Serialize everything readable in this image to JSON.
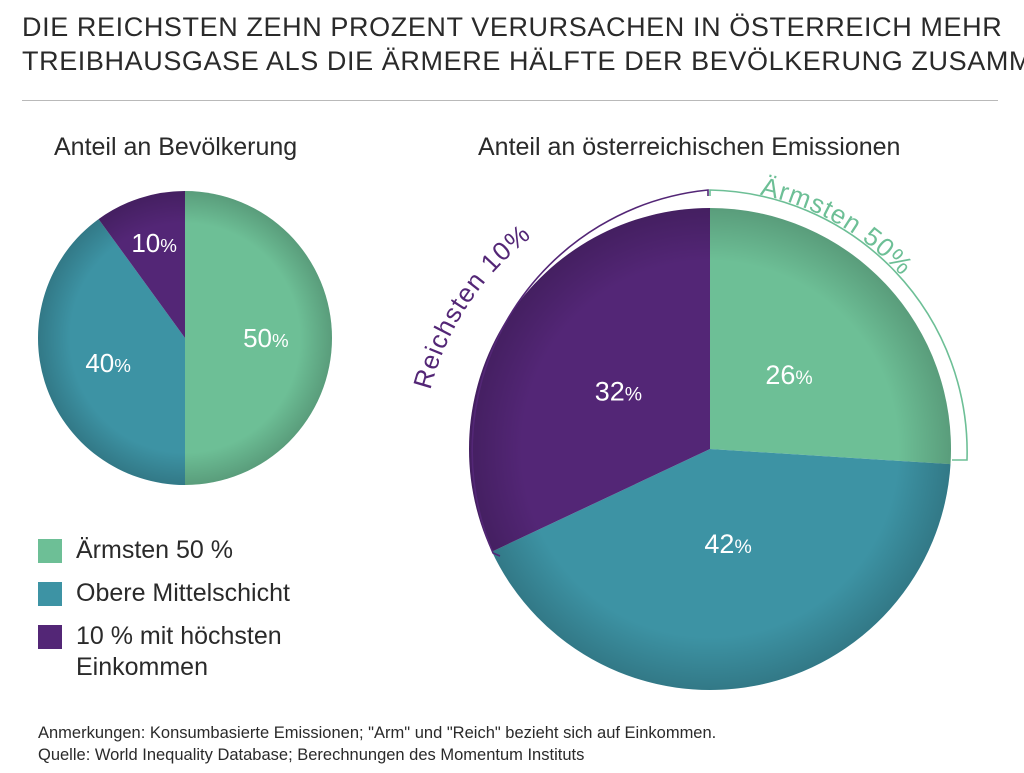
{
  "title": {
    "line1": "Die reichsten zehn Prozent verursachen in Österreich mehr",
    "line2": "Treibhausgase als die ärmere Hälfte der Bevölkerung zusammen"
  },
  "chart_data": [
    {
      "type": "pie",
      "title": "Anteil an Bevölkerung",
      "categories": [
        "Ärmsten 50 %",
        "Obere Mittelschicht",
        "10 % mit höchsten Einkommen"
      ],
      "values": [
        50,
        40,
        10
      ],
      "labels": [
        "50",
        "40",
        "10"
      ],
      "unit": "%"
    },
    {
      "type": "pie",
      "title": "Anteil an österreichischen Emissionen",
      "categories": [
        "Ärmsten 50 %",
        "Obere Mittelschicht",
        "10 % mit höchsten Einkommen"
      ],
      "values": [
        26,
        42,
        32
      ],
      "labels": [
        "26",
        "42",
        "32"
      ],
      "unit": "%",
      "annotations": [
        "Ärmsten 50%",
        "Reichsten 10%"
      ]
    }
  ],
  "legend": [
    {
      "label": "Ärmsten 50 %",
      "color": "#6dbf96"
    },
    {
      "label": "Obere Mittelschicht",
      "color": "#3d93a4"
    },
    {
      "label": "10 % mit höchsten Einkommen",
      "color": "#532676"
    }
  ],
  "notes": {
    "line1": "Anmerkungen: Konsumbasierte Emissionen; \"Arm\" und \"Reich\" bezieht sich auf Einkommen.",
    "line2": "Quelle: World Inequality Database; Berechnungen des Momentum Instituts"
  }
}
